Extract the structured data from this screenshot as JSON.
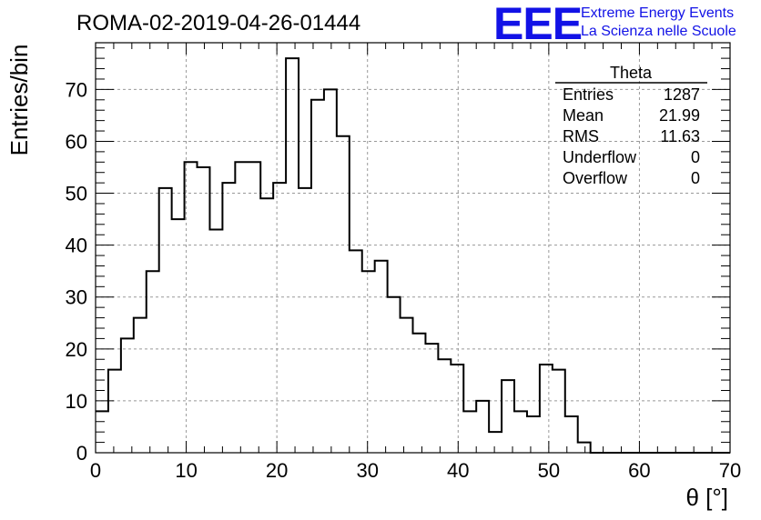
{
  "chart_data": {
    "type": "histogram",
    "title": "ROMA-02-2019-04-26-01444",
    "xlabel": "θ [°]",
    "ylabel": "Entries/bin",
    "xlim": [
      0,
      70
    ],
    "ylim": [
      0,
      79
    ],
    "grid": true,
    "bin_width": 1.4,
    "x_ticks": [
      "0",
      "10",
      "20",
      "30",
      "40",
      "50",
      "60",
      "70"
    ],
    "y_ticks": [
      "0",
      "10",
      "20",
      "30",
      "40",
      "50",
      "60",
      "70"
    ],
    "values": [
      8,
      16,
      22,
      26,
      35,
      51,
      45,
      56,
      55,
      43,
      52,
      56,
      56,
      49,
      52,
      76,
      51,
      68,
      70,
      61,
      39,
      35,
      37,
      30,
      26,
      23,
      21,
      18,
      17,
      8,
      10,
      4,
      14,
      8,
      7,
      17,
      16,
      7,
      2,
      0,
      0,
      0,
      0,
      0,
      0,
      0,
      0,
      0,
      0,
      0
    ]
  },
  "stats_box": {
    "name": "Theta",
    "rows": [
      {
        "label": "Entries",
        "value": "1287"
      },
      {
        "label": "Mean",
        "value": "21.99"
      },
      {
        "label": "RMS",
        "value": "11.63"
      },
      {
        "label": "Underflow",
        "value": "0"
      },
      {
        "label": "Overflow",
        "value": "0"
      }
    ]
  },
  "logo": {
    "mark": "EEE",
    "line1": "Extreme Energy Events",
    "line2": "La Scienza nelle Scuole",
    "color": "#1212e6"
  }
}
